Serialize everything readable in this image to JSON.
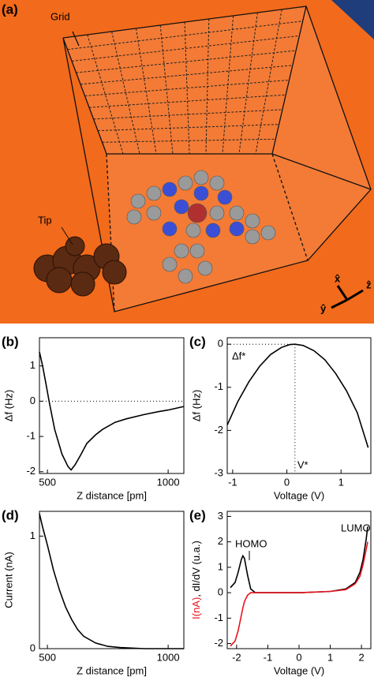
{
  "panel_a": {
    "label": "(a)",
    "grid_label": "Grid",
    "tip_label": "Tip",
    "axis_x": "x̂",
    "axis_y": "ŷ",
    "axis_z": "ẑ"
  },
  "chart_data": [
    {
      "type": "line",
      "panel_label": "(b)",
      "xlabel": "Z distance [pm]",
      "ylabel": "Δf (Hz)",
      "x": [
        467,
        480,
        495,
        507,
        530,
        560,
        585,
        598,
        615,
        640,
        663,
        700,
        728,
        780,
        826,
        900,
        957,
        1000,
        1065
      ],
      "series": [
        {
          "color": "#000000",
          "values": [
            1.4,
            1.0,
            0.45,
            0,
            -0.8,
            -1.5,
            -1.85,
            -1.95,
            -1.8,
            -1.5,
            -1.2,
            -0.95,
            -0.8,
            -0.6,
            -0.5,
            -0.38,
            -0.3,
            -0.25,
            -0.15
          ]
        }
      ],
      "xlim": [
        467,
        1065
      ],
      "ylim": [
        -2.05,
        1.8
      ],
      "xticks": [
        500,
        1000
      ],
      "yticks": [
        1,
        0,
        -1,
        -2
      ],
      "hline": 0
    },
    {
      "type": "line",
      "panel_label": "(c)",
      "xlabel": "Voltage (V)",
      "ylabel": "Δf (Hz)",
      "x": [
        -1.1,
        -0.9,
        -0.7,
        -0.5,
        -0.3,
        -0.1,
        0.05,
        0.15,
        0.3,
        0.5,
        0.7,
        0.9,
        1.1,
        1.3,
        1.5
      ],
      "series": [
        {
          "color": "#000000",
          "values": [
            -1.875,
            -1.32,
            -0.87,
            -0.51,
            -0.24,
            -0.075,
            -0.01,
            0,
            -0.03,
            -0.15,
            -0.36,
            -0.68,
            -1.08,
            -1.59,
            -2.4
          ]
        }
      ],
      "xlim": [
        -1.1,
        1.55
      ],
      "ylim": [
        -3,
        0.15
      ],
      "xticks": [
        -1,
        0,
        1
      ],
      "yticks": [
        0,
        -1,
        -2,
        -3
      ],
      "hline": 0,
      "vline": 0.15,
      "hline_label": "Δf*",
      "vline_label": "V*"
    },
    {
      "type": "line",
      "panel_label": "(d)",
      "xlabel": "Z distance [pm]",
      "ylabel": "Current (nA)",
      "x": [
        467,
        480,
        500,
        525,
        550,
        575,
        600,
        625,
        650,
        700,
        750,
        800,
        900,
        1000,
        1065
      ],
      "series": [
        {
          "color": "#000000",
          "values": [
            1.2,
            1.08,
            0.92,
            0.7,
            0.52,
            0.37,
            0.26,
            0.17,
            0.11,
            0.05,
            0.02,
            0.01,
            0,
            0,
            0
          ]
        }
      ],
      "xlim": [
        467,
        1065
      ],
      "ylim": [
        0,
        1.22
      ],
      "xticks": [
        500,
        1000
      ],
      "yticks": [
        1,
        0
      ]
    },
    {
      "type": "line",
      "panel_label": "(e)",
      "xlabel": "Voltage (V)",
      "ylabel_parts": [
        "I(nA)",
        ", dI/dV (u.a.)"
      ],
      "ylabel_colors": [
        "#e8141e",
        "#000000"
      ],
      "x": [
        -2.2,
        -2.05,
        -1.95,
        -1.85,
        -1.8,
        -1.75,
        -1.65,
        -1.55,
        -1.4,
        -1,
        0,
        1,
        1.5,
        1.8,
        1.95,
        2.05,
        2.15,
        2.2
      ],
      "series": [
        {
          "color": "#000000",
          "values": [
            0.2,
            0.4,
            0.8,
            1.3,
            1.45,
            1.35,
            0.7,
            0.15,
            0,
            0,
            0,
            0.05,
            0.15,
            0.4,
            0.8,
            1.3,
            2.1,
            2.6
          ]
        },
        {
          "color": "#e8141e",
          "values": [
            -2.1,
            -1.9,
            -1.5,
            -0.9,
            -0.6,
            -0.35,
            -0.1,
            0,
            0,
            0,
            0,
            0.05,
            0.12,
            0.35,
            0.65,
            1.1,
            1.7,
            2.0
          ]
        }
      ],
      "xlim": [
        -2.3,
        2.3
      ],
      "ylim": [
        -2.2,
        3.2
      ],
      "xticks": [
        -2,
        -1,
        0,
        1,
        2
      ],
      "yticks": [
        3,
        2,
        1,
        0,
        -1,
        -2
      ],
      "annotations": [
        "HOMO",
        "LUMO"
      ]
    }
  ]
}
